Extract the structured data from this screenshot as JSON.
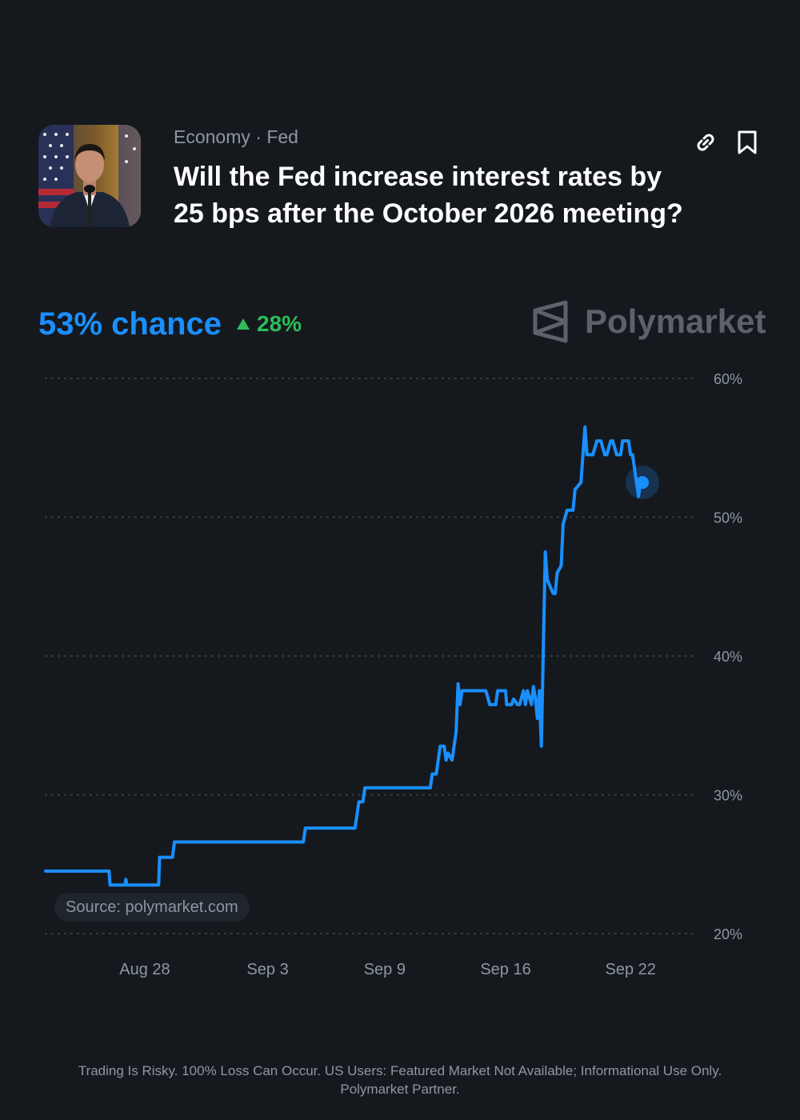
{
  "header": {
    "category": "Economy · Fed",
    "title": "Will the Fed increase interest rates by 25 bps after the October 2026 meeting?"
  },
  "summary": {
    "chance": "53% chance",
    "delta": "28%"
  },
  "brand": {
    "name": "Polymarket"
  },
  "source": "Source: polymarket.com",
  "footer": {
    "line1": "Trading Is Risky. 100% Loss Can Occur. US Users: Featured Market Not Available; Informational Use Only.",
    "line2": "Polymarket Partner."
  },
  "colors": {
    "background": "#15191e",
    "line": "#1a8fff",
    "positive": "#2dbd58",
    "muted": "#8d97a3"
  },
  "icons": [
    "link-icon",
    "bookmark-icon",
    "triangle-up-icon",
    "polymarket-logo-icon"
  ],
  "chart_data": {
    "type": "line",
    "x_unit": "days",
    "xlim": [
      0,
      32.8
    ],
    "ylim": [
      20,
      60
    ],
    "y_ticks": [
      20,
      30,
      40,
      50,
      60
    ],
    "y_tick_labels": [
      "20%",
      "30%",
      "40%",
      "50%",
      "60%"
    ],
    "x_ticks": [
      5,
      11.2,
      17.1,
      23.2,
      29.5
    ],
    "x_tick_labels": [
      "Aug 28",
      "Sep 3",
      "Sep 9",
      "Sep 16",
      "Sep 22"
    ],
    "grid": true,
    "grid_style": "dotted-horizontal",
    "series": [
      {
        "x": [
          0,
          3.2,
          3.25,
          4.0,
          4.05,
          4.1,
          5.7,
          5.75,
          6.4,
          6.5,
          13.0,
          13.1,
          15.6,
          15.7,
          15.8,
          16.0,
          16.1,
          19.4,
          19.5,
          19.7,
          19.9,
          20.1,
          20.2,
          20.3,
          20.5,
          20.7,
          20.8,
          20.9,
          21.0,
          21.3,
          21.4,
          22.2,
          22.4,
          22.7,
          22.8,
          23.2,
          23.25,
          23.5,
          23.6,
          23.8,
          23.9,
          24.1,
          24.2,
          24.3,
          24.5,
          24.6,
          24.7,
          24.8,
          24.9,
          25.0,
          25.2,
          25.3,
          25.6,
          25.7,
          25.8,
          26.0,
          26.1,
          26.3,
          26.6,
          26.7,
          27.0,
          27.2,
          27.3,
          27.6,
          27.8,
          28.0,
          28.2,
          28.3,
          28.5,
          28.6,
          28.8,
          29.0,
          29.1,
          29.4,
          29.5,
          29.6,
          29.7,
          29.9,
          30.0,
          30.1
        ],
        "y": [
          24.5,
          24.5,
          23.5,
          23.5,
          23.9,
          23.5,
          23.5,
          25.5,
          25.5,
          26.6,
          26.6,
          27.6,
          27.6,
          28.5,
          29.5,
          29.5,
          30.5,
          30.5,
          31.5,
          31.5,
          33.5,
          33.5,
          32.5,
          33.0,
          32.5,
          34.5,
          38.0,
          36.5,
          37.5,
          37.5,
          37.5,
          37.5,
          36.5,
          36.5,
          37.5,
          37.5,
          36.5,
          36.5,
          36.9,
          36.5,
          36.5,
          37.5,
          36.5,
          37.5,
          36.5,
          37.8,
          37.0,
          35.5,
          37.5,
          33.5,
          47.5,
          45.5,
          44.5,
          44.5,
          46.0,
          46.5,
          49.5,
          50.5,
          50.5,
          52.0,
          52.5,
          56.5,
          54.5,
          54.5,
          55.5,
          55.5,
          54.5,
          54.5,
          55.5,
          55.5,
          54.5,
          54.5,
          55.5,
          55.5,
          54.5,
          54.5,
          53.5,
          51.5,
          52.5,
          52.5
        ]
      }
    ],
    "endpoint": {
      "x": 30.1,
      "y": 52.5
    }
  }
}
